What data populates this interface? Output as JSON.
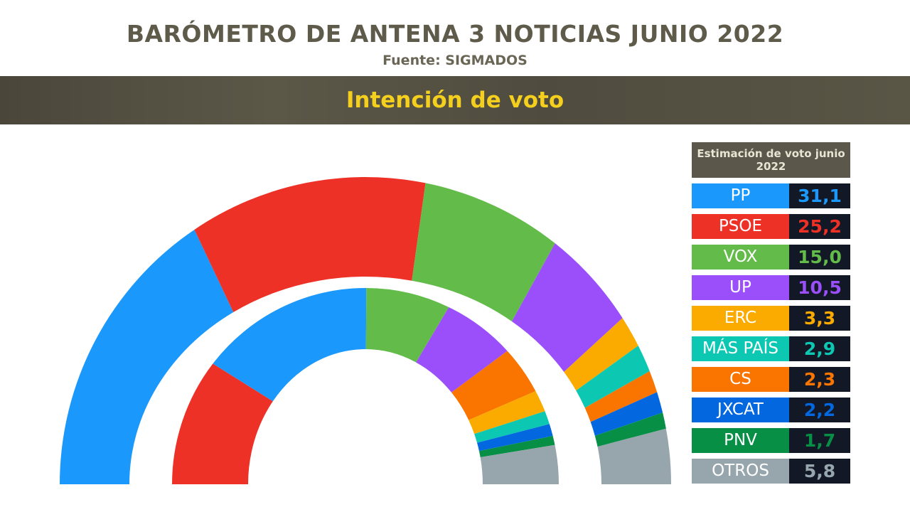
{
  "header": {
    "title": "BARÓMETRO DE ANTENA 3 NOTICIAS JUNIO 2022",
    "source": "Fuente: SIGMADOS",
    "subtitle": "Intención de voto"
  },
  "chart_data": {
    "type": "pie",
    "variant": "double semicircle donut",
    "legend_title": "Estimación de voto junio 2022",
    "legend_position": "right",
    "outer_ring": {
      "categories": [
        "PP",
        "PSOE",
        "VOX",
        "UP",
        "ERC",
        "MÁS PAÍS",
        "CS",
        "JXCAT",
        "PNV",
        "OTROS"
      ],
      "labels": [
        "31,1",
        "25,2",
        "15,0",
        "10,5",
        "3,3",
        "2,9",
        "2,3",
        "2,2",
        "1,7",
        "5,8"
      ],
      "values": [
        31.1,
        25.2,
        15.0,
        10.5,
        3.3,
        2.9,
        2.3,
        2.2,
        1.7,
        5.8
      ]
    },
    "inner_ring": {
      "categories": [
        "PSOE",
        "PP",
        "VOX",
        "UP",
        "CS",
        "ERC",
        "MÁS PAÍS",
        "JXCAT",
        "PNV",
        "OTROS"
      ],
      "values": [
        21,
        29,
        14,
        12,
        8,
        3.6,
        2.2,
        2,
        1.5,
        6.4
      ]
    },
    "colors": {
      "PP": "#1b98fb",
      "PSOE": "#ee3127",
      "VOX": "#63bb4a",
      "UP": "#9b4ffb",
      "ERC": "#fbab00",
      "MÁS PAÍS": "#0cc7b1",
      "CS": "#fa7500",
      "JXCAT": "#0367df",
      "PNV": "#078f46",
      "OTROS": "#97a6ad"
    }
  }
}
